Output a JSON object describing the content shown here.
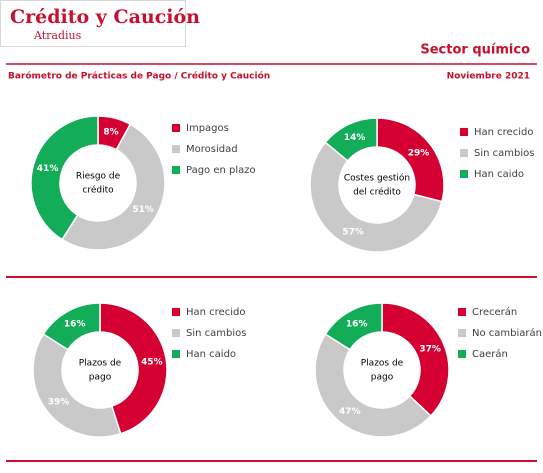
{
  "header": {
    "logo_main": "Crédito y Caución",
    "logo_sub": "Atradius",
    "sector": "Sector químico",
    "subtitle": "Barómetro de Prácticas de Pago / Crédito y Caución",
    "date": "Noviembre 2021"
  },
  "chart_data": [
    {
      "type": "donut",
      "center_label": [
        "Riesgo de",
        "crédito"
      ],
      "categories": [
        "Impagos",
        "Morosidad",
        "Pago en plazo"
      ],
      "values": [
        8,
        51,
        41
      ],
      "value_labels": [
        "8%",
        "51%",
        "41%"
      ],
      "colors": [
        "#d50032",
        "#c9c9c9",
        "#13ac58"
      ]
    },
    {
      "type": "donut",
      "center_label": [
        "Costes gestión",
        "del crédito"
      ],
      "categories": [
        "Han crecido",
        "Sin cambios",
        "Han caido"
      ],
      "values": [
        29,
        57,
        14
      ],
      "value_labels": [
        "29%",
        "57%",
        "14%"
      ],
      "colors": [
        "#d50032",
        "#c9c9c9",
        "#13ac58"
      ]
    },
    {
      "type": "donut",
      "center_label": [
        "Plazos de",
        "pago"
      ],
      "categories": [
        "Han crecido",
        "Sin cambios",
        "Han caido"
      ],
      "values": [
        45,
        39,
        16
      ],
      "value_labels": [
        "45%",
        "39%",
        "16%"
      ],
      "colors": [
        "#d50032",
        "#c9c9c9",
        "#13ac58"
      ]
    },
    {
      "type": "donut",
      "center_label": [
        "Plazos de",
        "pago"
      ],
      "categories": [
        "Crecerán",
        "No cambiarán",
        "Caerán"
      ],
      "values": [
        37,
        47,
        16
      ],
      "value_labels": [
        "37%",
        "47%",
        "16%"
      ],
      "colors": [
        "#d50032",
        "#c9c9c9",
        "#13ac58"
      ]
    }
  ]
}
